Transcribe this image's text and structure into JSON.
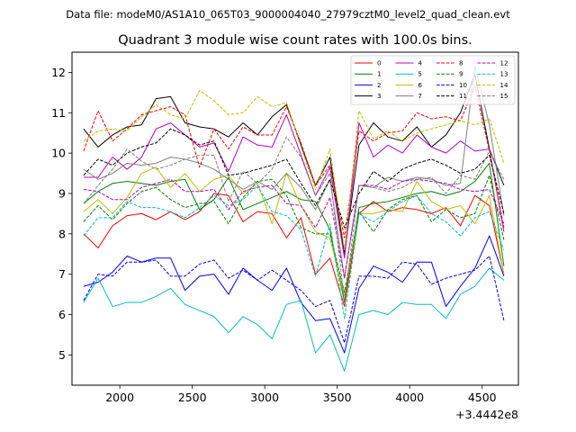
{
  "header": {
    "data_file_label": "Data file: modeM0/AS1A10_065T03_9000004040_27979cztM0_level2_quad_clean.evt"
  },
  "chart_data": {
    "type": "line",
    "title": "Quadrant 3 module wise count rates with 100.0s bins.",
    "xlabel": "",
    "ylabel": "",
    "x_offset_label": "+3.4442e8",
    "x_offset": 344420000,
    "xlim": [
      344421670,
      344424750
    ],
    "ylim": [
      4.25,
      12.5
    ],
    "x_ticks": [
      2000,
      2500,
      3000,
      3500,
      4000,
      4500
    ],
    "y_ticks": [
      5,
      6,
      7,
      8,
      9,
      10,
      11,
      12
    ],
    "grid": false,
    "legend_position": "top-right",
    "x": [
      344421750,
      344421850,
      344421950,
      344422050,
      344422150,
      344422250,
      344422350,
      344422450,
      344422550,
      344422650,
      344422750,
      344422850,
      344422950,
      344423050,
      344423150,
      344423250,
      344423350,
      344423450,
      344423550,
      344423650,
      344423750,
      344423850,
      344423950,
      344424050,
      344424150,
      344424250,
      344424350,
      344424450,
      344424550,
      344424650
    ],
    "series": [
      {
        "name": "0",
        "color": "#ff0000",
        "style": "solid",
        "values": [
          8.0,
          7.65,
          8.2,
          8.45,
          8.5,
          8.35,
          8.55,
          8.35,
          8.55,
          9.0,
          8.95,
          8.3,
          8.55,
          8.5,
          7.9,
          8.4,
          7.0,
          7.4,
          6.2,
          8.5,
          8.8,
          8.55,
          8.65,
          8.6,
          8.5,
          8.65,
          8.2,
          8.95,
          8.7,
          7.0
        ]
      },
      {
        "name": "1",
        "color": "#008000",
        "style": "solid",
        "values": [
          8.75,
          9.05,
          9.25,
          9.3,
          9.25,
          9.2,
          9.3,
          9.35,
          8.6,
          8.85,
          9.4,
          8.6,
          8.75,
          8.9,
          9.05,
          8.85,
          8.8,
          8.1,
          6.3,
          8.65,
          8.75,
          8.8,
          8.9,
          9.0,
          9.05,
          8.95,
          9.05,
          9.3,
          9.75,
          7.2
        ]
      },
      {
        "name": "2",
        "color": "#0000ff",
        "style": "solid",
        "values": [
          6.7,
          6.8,
          7.05,
          7.45,
          7.3,
          7.4,
          7.4,
          6.6,
          6.95,
          7.0,
          6.5,
          7.15,
          6.85,
          6.6,
          7.15,
          6.3,
          5.85,
          5.9,
          5.05,
          6.65,
          7.2,
          7.05,
          6.8,
          7.3,
          7.3,
          6.2,
          6.7,
          7.15,
          7.95,
          6.95
        ]
      },
      {
        "name": "3",
        "color": "#000000",
        "style": "solid",
        "values": [
          10.6,
          10.15,
          10.45,
          10.65,
          10.7,
          11.35,
          11.4,
          10.75,
          10.65,
          10.6,
          10.4,
          10.75,
          10.45,
          10.9,
          11.2,
          10.2,
          9.2,
          9.9,
          7.5,
          10.2,
          10.75,
          10.4,
          10.3,
          10.65,
          10.15,
          10.45,
          11.0,
          11.95,
          10.1,
          9.2
        ]
      },
      {
        "name": "4",
        "color": "#c000c0",
        "style": "solid",
        "values": [
          9.4,
          9.4,
          9.9,
          9.6,
          9.9,
          10.6,
          10.75,
          10.45,
          10.15,
          10.25,
          9.55,
          10.4,
          10.2,
          10.15,
          10.95,
          9.95,
          8.95,
          9.65,
          7.4,
          10.75,
          9.9,
          10.2,
          10.0,
          10.45,
          10.15,
          10.0,
          10.3,
          10.05,
          10.1,
          8.05
        ]
      },
      {
        "name": "5",
        "color": "#00bfbf",
        "style": "solid",
        "values": [
          6.3,
          6.9,
          6.2,
          6.3,
          6.3,
          6.45,
          6.65,
          6.25,
          6.1,
          5.95,
          5.55,
          5.95,
          5.75,
          5.4,
          6.25,
          6.35,
          5.05,
          5.5,
          4.6,
          6.0,
          6.1,
          6.0,
          6.3,
          6.25,
          6.25,
          5.9,
          6.5,
          6.7,
          7.15,
          6.85
        ]
      },
      {
        "name": "6",
        "color": "#bfbf00",
        "style": "solid",
        "values": [
          8.55,
          8.85,
          8.5,
          8.9,
          9.5,
          9.65,
          9.15,
          9.5,
          9.05,
          9.35,
          9.45,
          9.0,
          9.25,
          8.25,
          9.5,
          8.7,
          8.05,
          7.9,
          6.45,
          8.5,
          8.5,
          8.6,
          8.55,
          9.3,
          8.8,
          8.6,
          8.7,
          8.25,
          8.95,
          7.0
        ]
      },
      {
        "name": "7",
        "color": "#808080",
        "style": "solid",
        "values": [
          9.6,
          9.35,
          9.5,
          9.75,
          9.7,
          9.75,
          9.9,
          9.85,
          9.75,
          9.6,
          9.35,
          9.1,
          9.3,
          9.1,
          9.5,
          9.15,
          8.6,
          9.35,
          6.9,
          9.2,
          9.15,
          9.4,
          9.3,
          9.4,
          9.35,
          9.2,
          9.25,
          12.15,
          10.7,
          8.45
        ]
      },
      {
        "name": "8",
        "color": "#ff0000",
        "style": "dashed",
        "values": [
          10.05,
          11.05,
          10.3,
          10.6,
          10.95,
          11.05,
          11.15,
          10.95,
          9.65,
          10.6,
          10.1,
          10.65,
          10.45,
          10.45,
          11.15,
          10.25,
          9.2,
          9.7,
          7.9,
          10.55,
          10.3,
          10.5,
          10.55,
          11.0,
          10.85,
          10.9,
          10.8,
          11.65,
          10.05,
          8.15
        ]
      },
      {
        "name": "9",
        "color": "#008000",
        "style": "dashed",
        "values": [
          8.3,
          8.7,
          8.35,
          8.75,
          9.05,
          9.15,
          8.85,
          8.65,
          8.75,
          8.8,
          8.25,
          8.9,
          9.3,
          9.35,
          8.95,
          8.15,
          8.0,
          8.0,
          6.55,
          8.55,
          8.05,
          8.6,
          8.85,
          8.95,
          8.3,
          8.6,
          8.4,
          8.5,
          9.45,
          7.85
        ]
      },
      {
        "name": "10",
        "color": "#0000ff",
        "style": "dashed",
        "values": [
          6.35,
          7.0,
          6.95,
          7.3,
          7.3,
          7.35,
          6.95,
          6.95,
          7.25,
          7.35,
          6.9,
          7.1,
          6.85,
          7.1,
          6.85,
          6.6,
          6.2,
          6.35,
          5.3,
          6.95,
          6.95,
          6.9,
          7.3,
          7.25,
          6.75,
          6.9,
          7.0,
          7.1,
          7.45,
          5.85
        ]
      },
      {
        "name": "11",
        "color": "#000000",
        "style": "dashed",
        "values": [
          9.45,
          9.85,
          9.7,
          10.0,
          10.15,
          10.25,
          10.6,
          10.45,
          10.2,
          10.3,
          9.45,
          9.5,
          9.6,
          9.7,
          9.85,
          9.25,
          8.7,
          9.35,
          8.15,
          9.0,
          9.55,
          9.3,
          9.6,
          9.75,
          9.85,
          9.7,
          9.5,
          9.6,
          9.95,
          8.5
        ]
      },
      {
        "name": "12",
        "color": "#c000c0",
        "style": "dashed",
        "values": [
          9.1,
          9.05,
          8.85,
          8.85,
          9.15,
          9.25,
          9.35,
          9.05,
          9.05,
          9.1,
          8.6,
          9.05,
          9.15,
          9.2,
          8.75,
          8.7,
          8.15,
          8.9,
          6.9,
          9.2,
          9.2,
          9.1,
          9.3,
          9.35,
          9.3,
          9.25,
          9.1,
          9.05,
          9.1,
          8.25
        ]
      },
      {
        "name": "13",
        "color": "#00bfbf",
        "style": "dashed",
        "values": [
          7.95,
          8.4,
          8.4,
          8.8,
          8.65,
          8.65,
          8.55,
          8.4,
          8.65,
          8.95,
          8.7,
          8.85,
          9.2,
          8.55,
          8.45,
          8.1,
          6.95,
          8.25,
          5.9,
          8.5,
          8.3,
          8.55,
          8.8,
          8.95,
          8.5,
          8.3,
          7.95,
          8.4,
          8.55,
          7.6
        ]
      },
      {
        "name": "14",
        "color": "#bfbf00",
        "style": "dashed",
        "values": [
          10.3,
          10.55,
          10.6,
          10.55,
          10.9,
          11.2,
          10.95,
          10.85,
          11.55,
          11.3,
          10.95,
          11.0,
          11.4,
          11.15,
          11.25,
          10.15,
          9.1,
          10.1,
          7.6,
          11.05,
          10.35,
          10.55,
          10.3,
          10.5,
          10.6,
          10.7,
          10.8,
          10.7,
          10.85,
          9.75
        ]
      },
      {
        "name": "15",
        "color": "#808080",
        "style": "dashed",
        "values": [
          8.75,
          9.2,
          9.6,
          10.1,
          9.8,
          9.6,
          9.7,
          9.85,
          9.95,
          9.95,
          8.8,
          9.55,
          9.25,
          9.6,
          10.4,
          9.9,
          8.95,
          9.5,
          6.3,
          9.2,
          9.15,
          9.05,
          9.15,
          9.35,
          9.4,
          9.0,
          9.45,
          9.35,
          10.05,
          9.35
        ]
      }
    ]
  }
}
